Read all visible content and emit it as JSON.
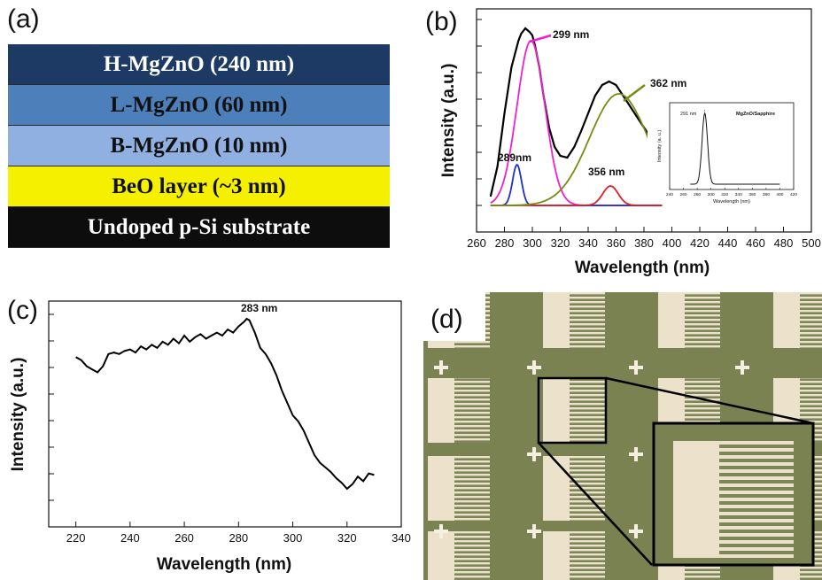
{
  "panels": {
    "a": "(a)",
    "b": "(b)",
    "c": "(c)",
    "d": "(d)"
  },
  "layers": [
    {
      "label": "H-MgZnO (240 nm)",
      "bg": "#1c3a63",
      "fg": "#ffffff"
    },
    {
      "label": "L-MgZnO (60 nm)",
      "bg": "#4d7fbb",
      "fg": "#111111"
    },
    {
      "label": "B-MgZnO (10 nm)",
      "bg": "#8fb0e0",
      "fg": "#111111"
    },
    {
      "label": "BeO layer (~3 nm)",
      "bg": "#f5f000",
      "fg": "#111111"
    },
    {
      "label": "Undoped p-Si substrate",
      "bg": "#0d0d0d",
      "fg": "#ffffff"
    }
  ],
  "chart_data": [
    {
      "panel": "(b)",
      "type": "line",
      "xlabel": "Wavelength (nm)",
      "ylabel": "Intensity (a.u.)",
      "xlim": [
        260,
        500
      ],
      "xticks": [
        260,
        280,
        300,
        320,
        340,
        360,
        380,
        400,
        420,
        440,
        460,
        480,
        500
      ],
      "series": [
        {
          "color": "#000000",
          "style": "measured",
          "x": [
            270,
            275,
            280,
            285,
            290,
            292,
            295,
            298,
            300,
            302,
            305,
            308,
            312,
            316,
            320,
            325,
            330,
            335,
            340,
            345,
            350,
            355,
            360,
            365,
            370,
            375,
            380,
            385,
            390,
            393
          ],
          "y": [
            0.05,
            0.22,
            0.52,
            0.78,
            0.93,
            0.97,
            1.0,
            0.98,
            0.96,
            0.9,
            0.78,
            0.62,
            0.44,
            0.33,
            0.28,
            0.27,
            0.33,
            0.42,
            0.52,
            0.62,
            0.68,
            0.7,
            0.68,
            0.62,
            0.56,
            0.5,
            0.44,
            0.38,
            0.34,
            0.32
          ]
        },
        {
          "color": "#ee22cc",
          "style": "fit",
          "center": 299,
          "width": 10,
          "amplitude": 0.93
        },
        {
          "color": "#1f2fcc",
          "style": "fit",
          "center": 289,
          "width": 3.2,
          "amplitude": 0.23
        },
        {
          "color": "#e02020",
          "style": "fit",
          "center": 356,
          "width": 5.5,
          "amplitude": 0.11
        },
        {
          "color": "#7a8a10",
          "style": "fit",
          "center": 362,
          "width": 21,
          "amplitude": 0.63
        }
      ],
      "annotations": [
        "299 nm",
        "362 nm",
        "289nm",
        "356 nm"
      ],
      "inset": {
        "xlabel": "Wavelength (nm)",
        "ylabel": "Intensity (a. u.)",
        "legend": "MgZnO/Sapphire",
        "peak_label": "291 nm",
        "xlim": [
          240,
          420
        ],
        "xticks": [
          240,
          260,
          280,
          300,
          320,
          340,
          360,
          380,
          400,
          420
        ],
        "peak": {
          "center": 291,
          "width": 4
        },
        "line_x": [
          270,
          400
        ]
      }
    },
    {
      "panel": "(c)",
      "type": "line",
      "xlabel": "Wavelength (nm)",
      "ylabel": "Intensity (a.u.)",
      "xlim": [
        210,
        340
      ],
      "xticks": [
        220,
        240,
        260,
        280,
        300,
        320,
        340
      ],
      "annotation": "283 nm",
      "series": [
        {
          "color": "#000000",
          "x": [
            220,
            222,
            224,
            226,
            228,
            230,
            232,
            234,
            236,
            238,
            240,
            242,
            244,
            246,
            248,
            250,
            252,
            254,
            256,
            258,
            260,
            262,
            264,
            266,
            268,
            270,
            272,
            274,
            276,
            278,
            280,
            282,
            283,
            284,
            286,
            288,
            290,
            292,
            294,
            296,
            298,
            300,
            302,
            304,
            306,
            308,
            310,
            312,
            314,
            316,
            318,
            320,
            322,
            324,
            326,
            328,
            330
          ],
          "y": [
            0.7,
            0.68,
            0.64,
            0.62,
            0.6,
            0.64,
            0.72,
            0.73,
            0.72,
            0.74,
            0.75,
            0.73,
            0.77,
            0.75,
            0.78,
            0.76,
            0.8,
            0.78,
            0.82,
            0.79,
            0.84,
            0.8,
            0.83,
            0.85,
            0.82,
            0.84,
            0.86,
            0.84,
            0.88,
            0.86,
            0.9,
            0.93,
            0.95,
            0.94,
            0.86,
            0.76,
            0.72,
            0.66,
            0.58,
            0.48,
            0.4,
            0.32,
            0.28,
            0.22,
            0.14,
            0.06,
            0.01,
            -0.02,
            -0.05,
            -0.09,
            -0.12,
            -0.16,
            -0.13,
            -0.08,
            -0.11,
            -0.06,
            -0.07
          ]
        }
      ]
    }
  ]
}
